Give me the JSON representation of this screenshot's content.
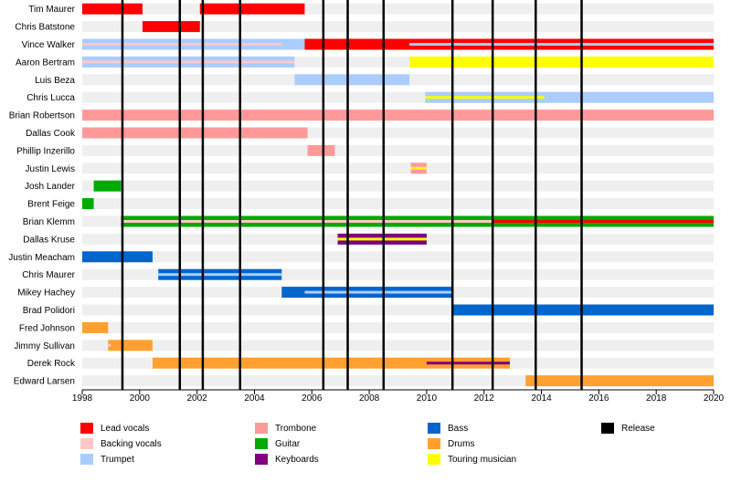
{
  "chart_data": {
    "type": "timeline",
    "title": "",
    "xlabel": "",
    "ylabel": "",
    "xlim": [
      1998,
      2020
    ],
    "x_ticks": [
      "1998",
      "2000",
      "2002",
      "2004",
      "2006",
      "2008",
      "2010",
      "2012",
      "2014",
      "2016",
      "2018",
      "2020"
    ],
    "roles": [
      {
        "key": "lead",
        "name": "Lead vocals",
        "color": "#ff0000"
      },
      {
        "key": "backing",
        "name": "Backing vocals",
        "color": "#ffc8c8"
      },
      {
        "key": "trumpet",
        "name": "Trumpet",
        "color": "#aaccff"
      },
      {
        "key": "trombone",
        "name": "Trombone",
        "color": "#ff9999"
      },
      {
        "key": "guitar",
        "name": "Guitar",
        "color": "#00aa00"
      },
      {
        "key": "keyboards",
        "name": "Keyboards",
        "color": "#800080"
      },
      {
        "key": "bass",
        "name": "Bass",
        "color": "#0066cc"
      },
      {
        "key": "drums",
        "name": "Drums",
        "color": "#ffa030"
      },
      {
        "key": "touring",
        "name": "Touring musician",
        "color": "#ffff00"
      },
      {
        "key": "release",
        "name": "Release",
        "color": "#000000"
      }
    ],
    "releases": [
      1999.4,
      2001.4,
      2002.2,
      2003.5,
      2006.4,
      2007.25,
      2008.5,
      2010.9,
      2012.3,
      2013.8,
      2015.4
    ],
    "members": [
      {
        "name": "Tim Maurer",
        "bars": [
          {
            "role": "lead",
            "start": 1998.0,
            "end": 2000.1
          },
          {
            "role": "lead",
            "start": 2002.1,
            "end": 2005.75
          }
        ]
      },
      {
        "name": "Chris Batstone",
        "bars": [
          {
            "role": "lead",
            "start": 2000.1,
            "end": 2002.1
          }
        ]
      },
      {
        "name": "Vince Walker",
        "bars": [
          {
            "role": "trumpet",
            "start": 1998.0,
            "end": 2005.75
          },
          {
            "role": "backing",
            "start": 1998.0,
            "end": 2004.95,
            "thin": true
          },
          {
            "role": "lead",
            "start": 2005.75,
            "end": 2020.0
          },
          {
            "role": "guitar",
            "start": 2009.4,
            "end": 2020.0,
            "thin": true
          },
          {
            "role": "trumpet",
            "start": 2009.4,
            "end": 2020.0,
            "thin": true
          }
        ]
      },
      {
        "name": "Aaron Bertram",
        "bars": [
          {
            "role": "trumpet",
            "start": 1998.0,
            "end": 2005.4
          },
          {
            "role": "backing",
            "start": 1998.0,
            "end": 2005.4,
            "thin": true
          },
          {
            "role": "touring",
            "start": 2009.4,
            "end": 2020.0
          }
        ]
      },
      {
        "name": "Luis Beza",
        "bars": [
          {
            "role": "trumpet",
            "start": 2005.4,
            "end": 2009.4
          }
        ]
      },
      {
        "name": "Chris Lucca",
        "bars": [
          {
            "role": "trumpet",
            "start": 2009.95,
            "end": 2020.0
          },
          {
            "role": "touring",
            "start": 2009.95,
            "end": 2014.1,
            "thin": true
          }
        ]
      },
      {
        "name": "Brian Robertson",
        "bars": [
          {
            "role": "trombone",
            "start": 1998.0,
            "end": 2020.0
          }
        ]
      },
      {
        "name": "Dallas Cook",
        "bars": [
          {
            "role": "trombone",
            "start": 1998.0,
            "end": 2005.85
          }
        ]
      },
      {
        "name": "Phillip Inzerillo",
        "bars": [
          {
            "role": "trombone",
            "start": 2005.85,
            "end": 2006.8
          }
        ]
      },
      {
        "name": "Justin Lewis",
        "bars": [
          {
            "role": "trombone",
            "start": 2009.45,
            "end": 2010.0
          },
          {
            "role": "touring",
            "start": 2009.45,
            "end": 2010.0,
            "thin": true
          }
        ]
      },
      {
        "name": "Josh Lander",
        "bars": [
          {
            "role": "guitar",
            "start": 1998.4,
            "end": 1999.35
          }
        ]
      },
      {
        "name": "Brent Feige",
        "bars": [
          {
            "role": "guitar",
            "start": 1998.0,
            "end": 1998.4
          }
        ]
      },
      {
        "name": "Brian Klemm",
        "bars": [
          {
            "role": "guitar",
            "start": 1999.35,
            "end": 2020.0
          },
          {
            "role": "backing",
            "start": 1999.35,
            "end": 2012.3,
            "thin": true
          },
          {
            "role": "lead",
            "start": 2012.3,
            "end": 2020.0,
            "thin": true
          }
        ]
      },
      {
        "name": "Dallas Kruse",
        "bars": [
          {
            "role": "keyboards",
            "start": 2006.9,
            "end": 2010.0
          },
          {
            "role": "touring",
            "start": 2006.9,
            "end": 2010.0,
            "thin": true
          }
        ]
      },
      {
        "name": "Justin Meacham",
        "bars": [
          {
            "role": "bass",
            "start": 1998.0,
            "end": 2000.45
          }
        ]
      },
      {
        "name": "Chris Maurer",
        "bars": [
          {
            "role": "bass",
            "start": 2000.65,
            "end": 2004.95
          },
          {
            "role": "trumpet",
            "start": 2000.65,
            "end": 2004.95,
            "thin": true
          }
        ]
      },
      {
        "name": "Mikey Hachey",
        "bars": [
          {
            "role": "bass",
            "start": 2004.95,
            "end": 2010.9
          },
          {
            "role": "trumpet",
            "start": 2005.75,
            "end": 2010.9,
            "thin": true
          }
        ]
      },
      {
        "name": "Brad Polidori",
        "bars": [
          {
            "role": "bass",
            "start": 2010.9,
            "end": 2020.0
          }
        ]
      },
      {
        "name": "Fred Johnson",
        "bars": [
          {
            "role": "drums",
            "start": 1998.0,
            "end": 1998.9
          }
        ]
      },
      {
        "name": "Jimmy Sullivan",
        "bars": [
          {
            "role": "drums",
            "start": 1998.9,
            "end": 2000.45
          },
          {
            "role": "backing",
            "start": 1998.9,
            "end": 1999.0,
            "thin": true
          }
        ]
      },
      {
        "name": "Derek Rock",
        "bars": [
          {
            "role": "drums",
            "start": 2000.45,
            "end": 2012.9
          },
          {
            "role": "keyboards",
            "start": 2010.0,
            "end": 2012.9,
            "thin": true
          }
        ]
      },
      {
        "name": "Edward Larsen",
        "bars": [
          {
            "role": "drums",
            "start": 2013.45,
            "end": 2020.0
          }
        ]
      }
    ]
  }
}
